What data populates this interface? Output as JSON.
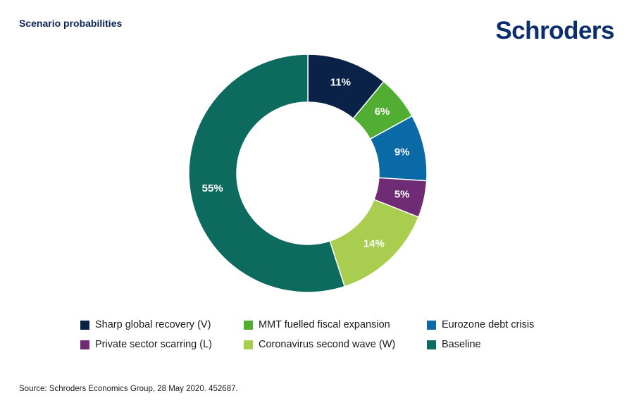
{
  "header": {
    "title": "Scenario probabilities",
    "logo_text": "Schroders"
  },
  "footer": {
    "source": "Source: Schroders Economics Group, 28 May 2020. 452687."
  },
  "colors": {
    "title": "#0a2352",
    "logo": "#0a2d6e"
  },
  "chart_data": {
    "type": "pie",
    "variant": "donut",
    "title": "Scenario probabilities",
    "legend_placement": "bottom",
    "series": [
      {
        "name": "Sharp global recovery (V)",
        "value": 11,
        "label": "11%",
        "color": "#0b2248"
      },
      {
        "name": "MMT fuelled fiscal expansion",
        "value": 6,
        "label": "6%",
        "color": "#52ae32"
      },
      {
        "name": "Eurozone debt crisis",
        "value": 9,
        "label": "9%",
        "color": "#0a6aa6"
      },
      {
        "name": "Private sector scarring (L)",
        "value": 5,
        "label": "5%",
        "color": "#6f2b73"
      },
      {
        "name": "Coronavirus second wave (W)",
        "value": 14,
        "label": "14%",
        "color": "#a8cd4f"
      },
      {
        "name": "Baseline",
        "value": 55,
        "label": "55%",
        "color": "#0c6a5f"
      }
    ]
  }
}
